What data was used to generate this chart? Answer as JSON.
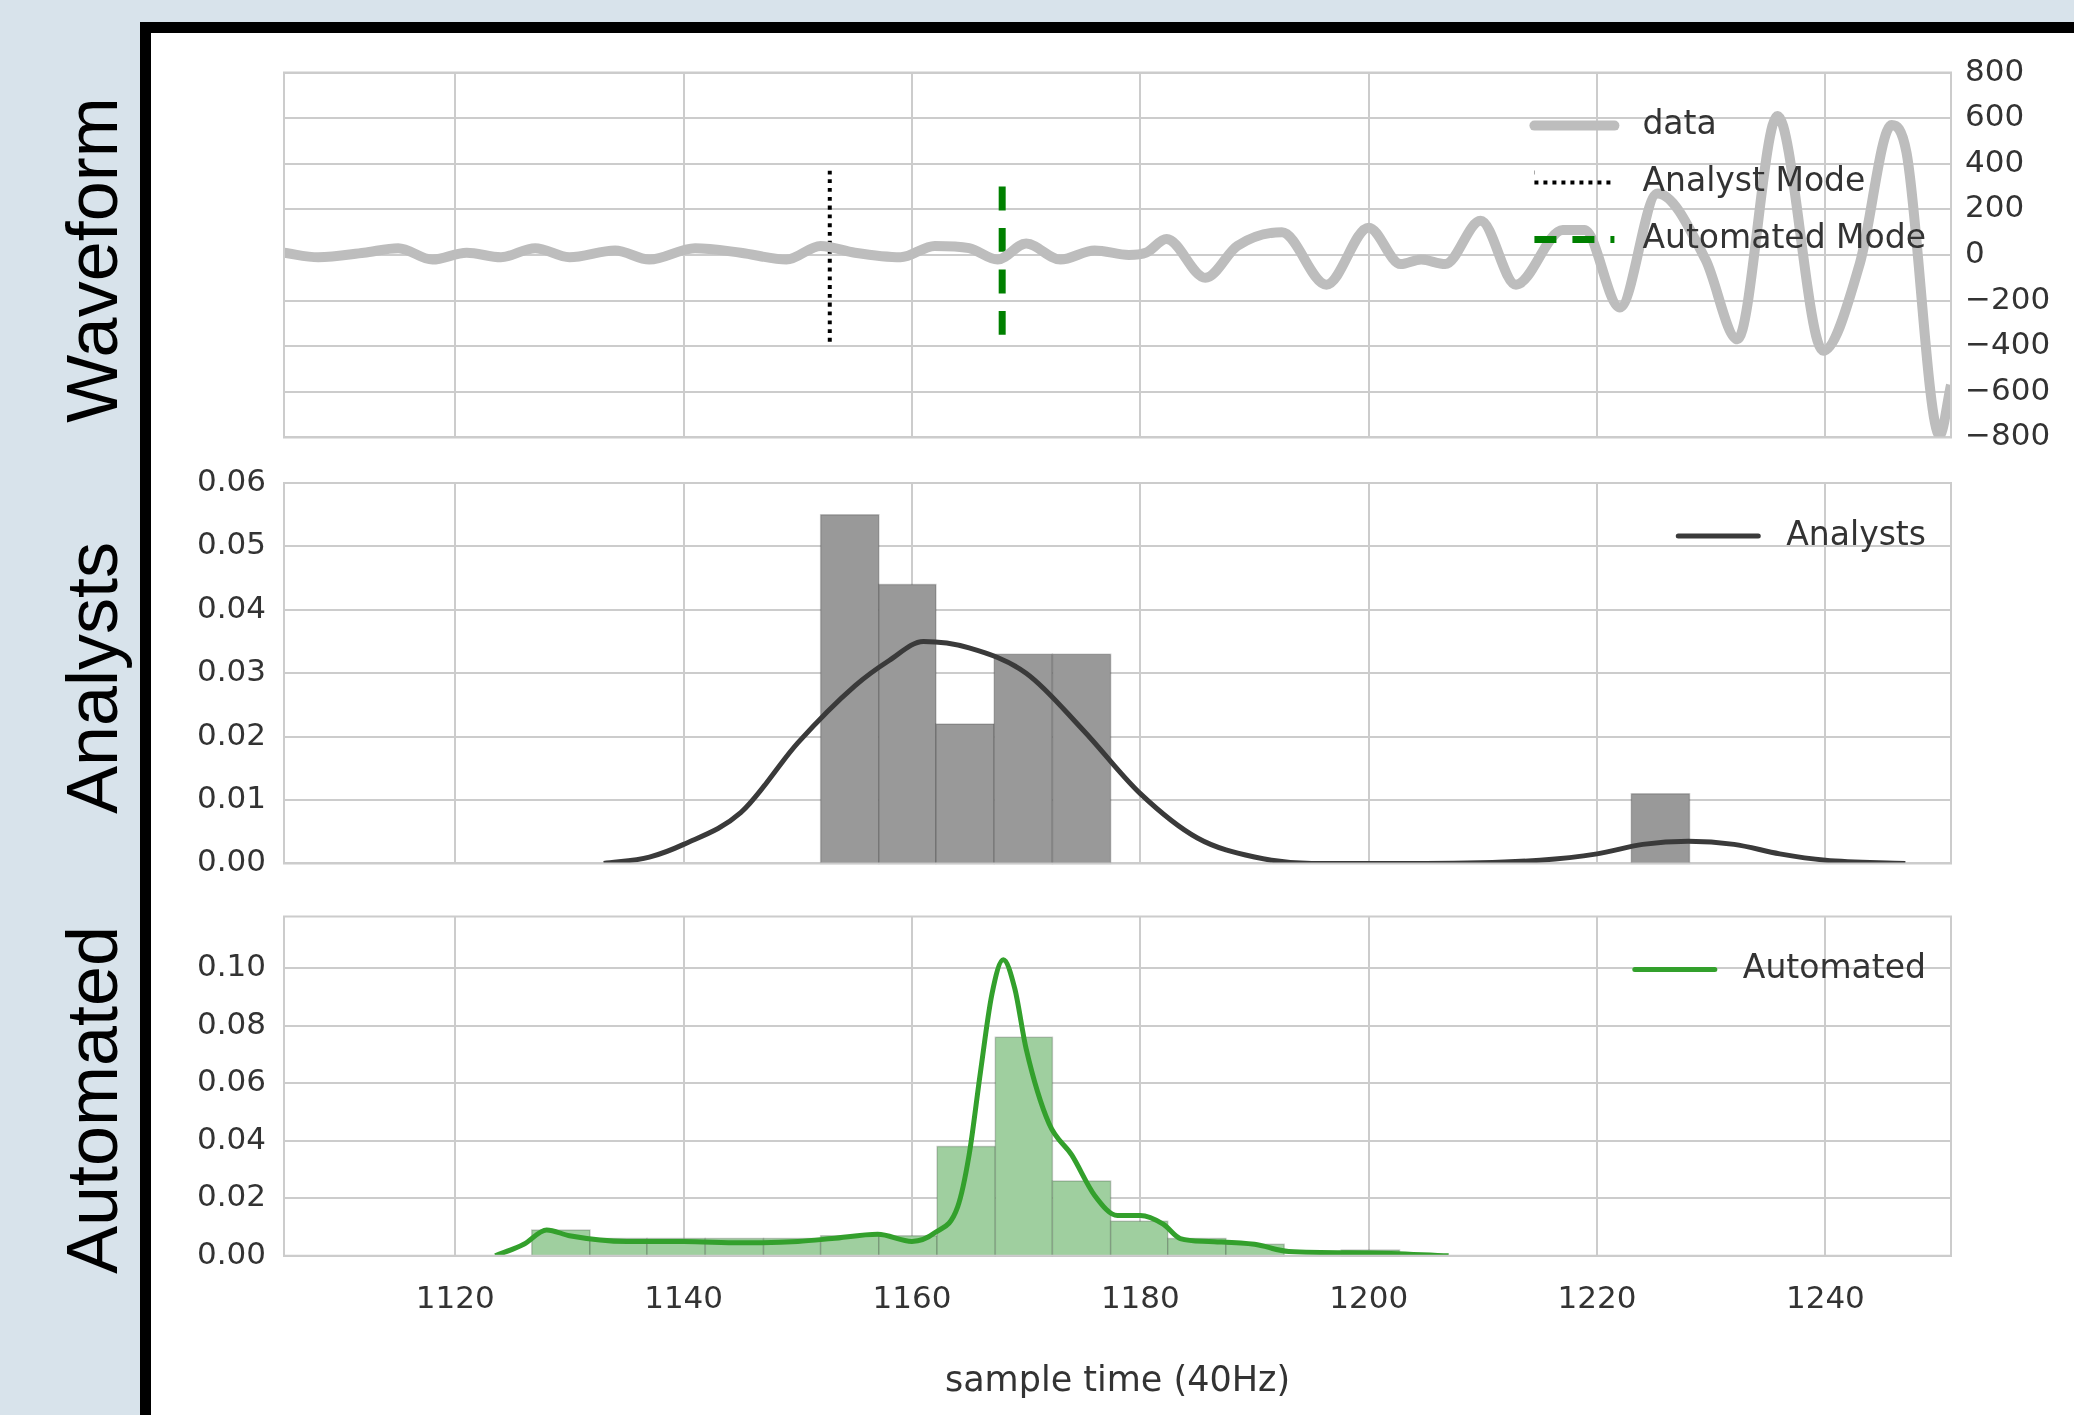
{
  "chart_data": [
    {
      "type": "line",
      "ylabel": "Waveform",
      "xlim": [
        1105,
        1251
      ],
      "xticks": [
        1120,
        1140,
        1160,
        1180,
        1200,
        1220,
        1240
      ],
      "ylim": [
        -800,
        800
      ],
      "yticks": [
        800,
        600,
        400,
        200,
        0,
        {
          "value": -200,
          "label": "−200"
        },
        {
          "value": -400,
          "label": "−400"
        },
        {
          "value": -600,
          "label": "−600"
        },
        {
          "value": -800,
          "label": "−800"
        }
      ],
      "grid": true,
      "legend": "top right",
      "tick_labels": "y",
      "series": [
        {
          "name": "data",
          "color": "#bdbdbd",
          "x": [
            1105,
            1108,
            1112,
            1115,
            1118,
            1121,
            1124,
            1127,
            1130,
            1134,
            1137,
            1141,
            1145,
            1149,
            1152,
            1155,
            1159,
            1162,
            1165,
            1167.5,
            1170,
            1173,
            1176,
            1179,
            1180.5,
            1182.3,
            1185.7,
            1188.5,
            1192.4,
            1196.3,
            1200,
            1202.8,
            1204.6,
            1206.7,
            1209.8,
            1212.9,
            1217,
            1218.9,
            1222,
            1225.3,
            1229.5,
            1232.3,
            1235.8,
            1239.8,
            1243,
            1245.8,
            1247.1,
            1250,
            1251
          ],
          "values": [
            10,
            -10,
            10,
            30,
            -20,
            10,
            -10,
            30,
            -10,
            20,
            -20,
            30,
            10,
            -20,
            40,
            10,
            -10,
            40,
            30,
            -20,
            50,
            -20,
            20,
            0,
            10,
            70,
            -100,
            40,
            100,
            -130,
            120,
            -40,
            -20,
            -40,
            150,
            -130,
            110,
            110,
            -230,
            270,
            -20,
            -370,
            610,
            -420,
            -40,
            570,
            450,
            -790,
            -570
          ]
        },
        {
          "name": "Analyst Mode",
          "color": "#000000",
          "line_style": "dotted",
          "x": [
            1152.8,
            1152.8
          ],
          "values": [
            370,
            -380
          ]
        },
        {
          "name": "Automated Mode",
          "color": "#008000",
          "line_style": "dashed",
          "x": [
            1167.9,
            1167.9
          ],
          "values": [
            300,
            -350
          ]
        }
      ]
    },
    {
      "type": "histogram",
      "ylabel": "Analysts",
      "xlim": [
        1105,
        1251
      ],
      "xticks": [
        1120,
        1140,
        1160,
        1180,
        1200,
        1220,
        1240
      ],
      "ylim": [
        0,
        0.06
      ],
      "yticks": [
        {
          "value": 0,
          "label": "0.00"
        },
        {
          "value": 0.01,
          "label": "0.01"
        },
        {
          "value": 0.02,
          "label": "0.02"
        },
        {
          "value": 0.03,
          "label": "0.03"
        },
        {
          "value": 0.04,
          "label": "0.04"
        },
        {
          "value": 0.05,
          "label": "0.05"
        },
        {
          "value": 0.06,
          "label": "0.06"
        }
      ],
      "grid": true,
      "legend": "top right",
      "tick_labels": "y",
      "series": [
        {
          "type": "histogram",
          "color": "#999999",
          "bins": [
            1152.0,
            1157.1,
            1162.1,
            1167.2,
            1172.3,
            1177.4
          ],
          "values": [
            0.055,
            0.044,
            0.022,
            0.033,
            0.033
          ]
        },
        {
          "type": "histogram",
          "color": "#999999",
          "bins": [
            1223.0,
            1228.1
          ],
          "values": [
            0.011
          ]
        },
        {
          "type": "line",
          "name": "Analysts",
          "color": "#3a3a3a",
          "x": [
            1133,
            1137,
            1140,
            1145,
            1150,
            1155,
            1158,
            1161,
            1165,
            1170,
            1175,
            1180,
            1185,
            1190,
            1195,
            1205,
            1215,
            1220,
            1224,
            1228,
            1232,
            1236,
            1240,
            1247
          ],
          "values": [
            0,
            0.001,
            0.003,
            0.008,
            0.019,
            0.028,
            0.032,
            0.035,
            0.034,
            0.03,
            0.021,
            0.011,
            0.004,
            0.001,
            0,
            0,
            0.0005,
            0.0015,
            0.003,
            0.0035,
            0.003,
            0.0015,
            0.0005,
            0
          ]
        }
      ]
    },
    {
      "type": "histogram",
      "ylabel": "Automated",
      "xlabel": "sample time (40Hz)",
      "xlim": [
        1105,
        1251
      ],
      "xticks": [
        1120,
        1140,
        1160,
        1180,
        1200,
        1220,
        1240
      ],
      "ylim": [
        0,
        0.118
      ],
      "yticks": [
        {
          "value": 0,
          "label": "0.00"
        },
        {
          "value": 0.02,
          "label": "0.02"
        },
        {
          "value": 0.04,
          "label": "0.04"
        },
        {
          "value": 0.06,
          "label": "0.06"
        },
        {
          "value": 0.08,
          "label": "0.08"
        },
        {
          "value": 0.1,
          "label": "0.10"
        }
      ],
      "grid": true,
      "legend": "top right",
      "series": [
        {
          "type": "histogram",
          "color": "#9fcf9f",
          "bins": [
            1126.7,
            1131.8,
            1136.8,
            1141.9,
            1147.0,
            1152.0,
            1157.1,
            1162.2,
            1167.3,
            1172.3,
            1177.4,
            1182.4,
            1187.5,
            1192.6,
            1197.6,
            1202.7
          ],
          "values": [
            0.009,
            0.006,
            0.006,
            0.006,
            0.006,
            0.007,
            0.007,
            0.038,
            0.076,
            0.026,
            0.012,
            0.006,
            0.004,
            null,
            0.002
          ]
        },
        {
          "type": "line",
          "name": "Automated",
          "color": "#33a02c",
          "x": [
            1123.5,
            1126,
            1128,
            1130,
            1135,
            1140,
            1145,
            1150,
            1153,
            1157,
            1160,
            1162,
            1164,
            1165,
            1166,
            1167,
            1168,
            1169,
            1170,
            1172,
            1174,
            1176,
            1178,
            1180,
            1182,
            1183.5,
            1186,
            1190,
            1193,
            1200,
            1207
          ],
          "values": [
            0,
            0.004,
            0.009,
            0.007,
            0.005,
            0.005,
            0.0045,
            0.005,
            0.006,
            0.0075,
            0.005,
            0.008,
            0.017,
            0.035,
            0.064,
            0.091,
            0.103,
            0.093,
            0.072,
            0.046,
            0.035,
            0.021,
            0.014,
            0.014,
            0.011,
            0.006,
            0.005,
            0.004,
            0.0015,
            0.001,
            0
          ]
        }
      ]
    }
  ]
}
